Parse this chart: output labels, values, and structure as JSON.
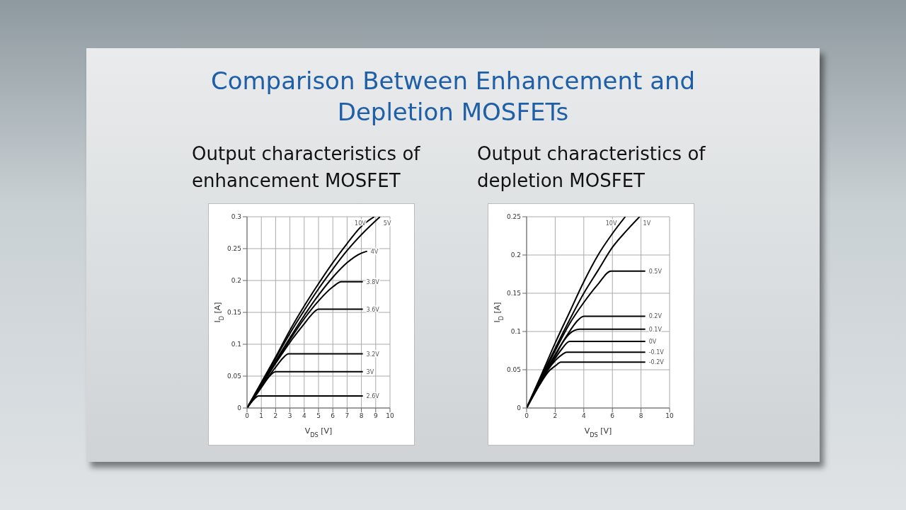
{
  "chart_data": [
    {
      "type": "other",
      "title": "Comparison Between Enhancement and Depletion MOSFETs"
    },
    {
      "type": "line",
      "title": "Output characteristics of enhancement MOSFET",
      "xlabel": "V$_{DS}$ [V]",
      "ylabel": "I$_{D}$ [A]",
      "xlim": [
        0,
        10
      ],
      "xticks": [
        0,
        1,
        2,
        3,
        4,
        5,
        6,
        7,
        8,
        9,
        10
      ],
      "ylim": [
        0,
        0.3
      ],
      "yticks": [
        0,
        0.05,
        0.1,
        0.15,
        0.2,
        0.25,
        0.3
      ],
      "grid": true,
      "marker": "none",
      "line_style": "solid",
      "series": [
        {
          "name": "10V",
          "color": "#000000",
          "x": [
            0,
            1,
            2,
            3,
            4,
            5,
            6,
            7,
            8,
            8.9
          ],
          "values": [
            0,
            0.04,
            0.08,
            0.122,
            0.16,
            0.195,
            0.228,
            0.258,
            0.285,
            0.3
          ]
        },
        {
          "name": "5V",
          "color": "#000000",
          "x": [
            0,
            1,
            2,
            3,
            4,
            5,
            6,
            7,
            8,
            9.3
          ],
          "values": [
            0,
            0.039,
            0.078,
            0.117,
            0.153,
            0.187,
            0.218,
            0.247,
            0.272,
            0.3
          ]
        },
        {
          "name": "4V",
          "color": "#000000",
          "x": [
            0,
            1,
            2,
            3,
            4,
            5,
            6,
            7,
            8,
            8.4
          ],
          "values": [
            0,
            0.037,
            0.074,
            0.11,
            0.145,
            0.177,
            0.205,
            0.228,
            0.243,
            0.246
          ]
        },
        {
          "name": "3.8V",
          "color": "#000000",
          "x": [
            0,
            1,
            2,
            3,
            4,
            5,
            6,
            6.6,
            8.1
          ],
          "values": [
            0,
            0.036,
            0.072,
            0.107,
            0.14,
            0.168,
            0.19,
            0.198,
            0.198
          ]
        },
        {
          "name": "3.6V",
          "color": "#000000",
          "x": [
            0,
            1,
            2,
            3,
            4,
            4.5,
            5,
            8.1
          ],
          "values": [
            0,
            0.035,
            0.07,
            0.103,
            0.132,
            0.146,
            0.155,
            0.155
          ]
        },
        {
          "name": "3.2V",
          "color": "#000000",
          "x": [
            0,
            1,
            2,
            2.5,
            2.9,
            8.1
          ],
          "values": [
            0,
            0.033,
            0.064,
            0.078,
            0.085,
            0.085
          ]
        },
        {
          "name": "3V",
          "color": "#000000",
          "x": [
            0,
            1,
            1.5,
            2,
            8.1
          ],
          "values": [
            0,
            0.032,
            0.048,
            0.057,
            0.057
          ]
        },
        {
          "name": "2.6V",
          "color": "#000000",
          "x": [
            0,
            0.5,
            0.8,
            8.1
          ],
          "values": [
            0,
            0.014,
            0.019,
            0.019
          ]
        }
      ]
    },
    {
      "type": "line",
      "title": "Output characteristics of depletion MOSFET",
      "xlabel": "V$_{DS}$ [V]",
      "ylabel": "I$_{D}$ [A]",
      "xlim": [
        0,
        10
      ],
      "xticks": [
        0,
        2,
        4,
        6,
        8,
        10
      ],
      "ylim": [
        0,
        0.25
      ],
      "yticks": [
        0,
        0.05,
        0.1,
        0.15,
        0.2,
        0.25
      ],
      "grid": true,
      "marker": "none",
      "line_style": "solid",
      "series": [
        {
          "name": "10V",
          "color": "#000000",
          "x": [
            0,
            1,
            2,
            3,
            4,
            5,
            6,
            6.9
          ],
          "values": [
            0,
            0.042,
            0.085,
            0.125,
            0.165,
            0.2,
            0.228,
            0.25
          ]
        },
        {
          "name": "1V",
          "color": "#000000",
          "x": [
            0,
            1,
            2,
            3,
            4,
            5,
            6,
            7,
            7.9
          ],
          "values": [
            0,
            0.04,
            0.078,
            0.115,
            0.15,
            0.18,
            0.21,
            0.232,
            0.25
          ]
        },
        {
          "name": "0.5V",
          "color": "#000000",
          "x": [
            0,
            1,
            2,
            3,
            4,
            5,
            5.9,
            8.3
          ],
          "values": [
            0,
            0.038,
            0.075,
            0.11,
            0.138,
            0.162,
            0.179,
            0.179
          ]
        },
        {
          "name": "0.2V",
          "color": "#000000",
          "x": [
            0,
            1,
            2,
            3,
            3.5,
            4,
            8.3
          ],
          "values": [
            0,
            0.037,
            0.07,
            0.1,
            0.113,
            0.12,
            0.12
          ]
        },
        {
          "name": "0.1V",
          "color": "#000000",
          "x": [
            0,
            1,
            2,
            2.5,
            3,
            3.7,
            8.3
          ],
          "values": [
            0,
            0.036,
            0.068,
            0.085,
            0.097,
            0.103,
            0.103
          ]
        },
        {
          "name": "0V",
          "color": "#000000",
          "x": [
            0,
            1,
            2,
            2.5,
            3,
            8.3
          ],
          "values": [
            0,
            0.035,
            0.065,
            0.078,
            0.087,
            0.087
          ]
        },
        {
          "name": "-0.1V",
          "color": "#000000",
          "x": [
            0,
            1,
            1.5,
            2,
            2.5,
            2.8,
            8.3
          ],
          "values": [
            0,
            0.034,
            0.05,
            0.062,
            0.07,
            0.073,
            0.073
          ]
        },
        {
          "name": "-0.2V",
          "color": "#000000",
          "x": [
            0,
            1,
            1.5,
            2,
            2.4,
            8.3
          ],
          "values": [
            0,
            0.033,
            0.047,
            0.055,
            0.06,
            0.06
          ]
        }
      ]
    }
  ]
}
